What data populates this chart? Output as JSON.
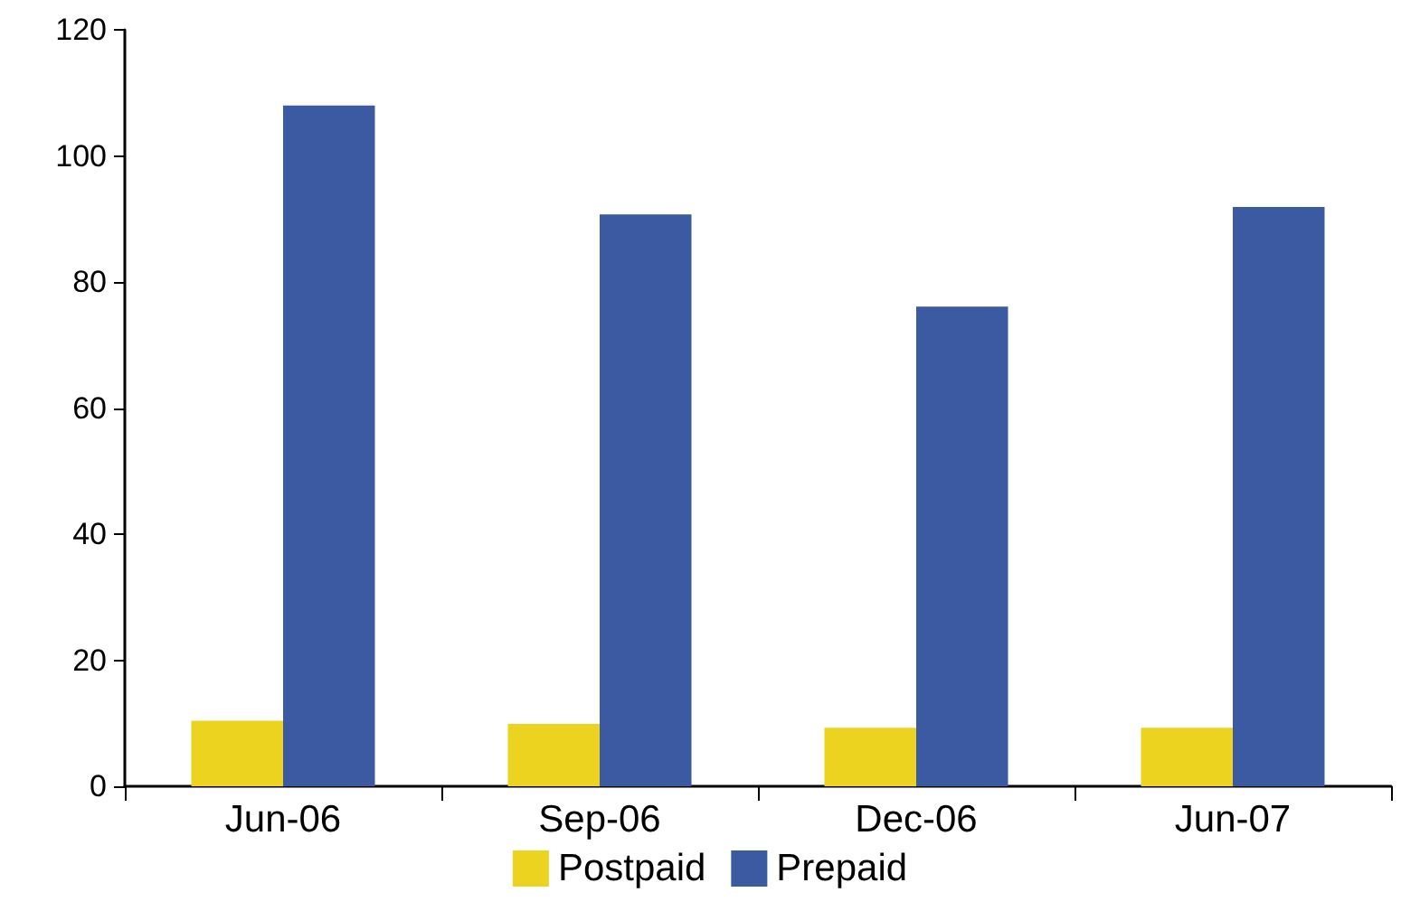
{
  "chart_data": {
    "type": "bar",
    "categories": [
      "Jun-06",
      "Sep-06",
      "Dec-06",
      "Jun-07"
    ],
    "series": [
      {
        "name": "Postpaid",
        "color": "#ecd31f",
        "values": [
          10.4,
          9.9,
          9.3,
          9.3
        ]
      },
      {
        "name": "Prepaid",
        "color": "#3c5aa2",
        "values": [
          108,
          90.7,
          76.1,
          91.9
        ]
      }
    ],
    "ylim": [
      0,
      120
    ],
    "yticks": [
      0,
      20,
      40,
      60,
      80,
      100,
      120
    ],
    "grid": false,
    "legend": "bottom"
  }
}
